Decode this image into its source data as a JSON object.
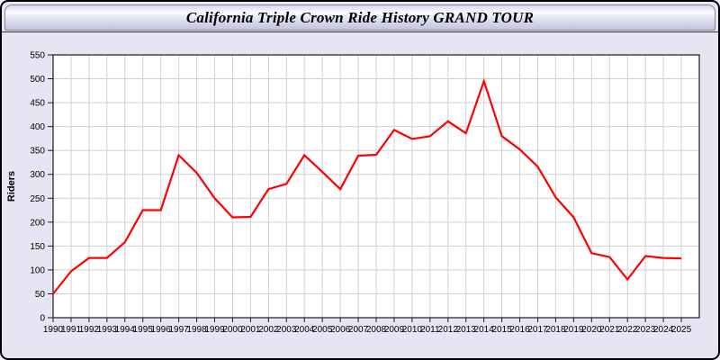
{
  "window": {
    "title": "California Triple Crown Ride History GRAND TOUR"
  },
  "chart_data": {
    "type": "line",
    "title": "California Triple Crown Ride History GRAND TOUR",
    "xlabel": "",
    "ylabel": "Riders",
    "x": [
      1990,
      1991,
      1992,
      1993,
      1994,
      1995,
      1996,
      1997,
      1998,
      1999,
      2000,
      2001,
      2002,
      2003,
      2004,
      2005,
      2006,
      2007,
      2008,
      2009,
      2010,
      2011,
      2012,
      2013,
      2014,
      2015,
      2016,
      2017,
      2018,
      2019,
      2020,
      2021,
      2022,
      2023,
      2024,
      2025
    ],
    "series": [
      {
        "name": "Riders",
        "values": [
          50,
          97,
          125,
          125,
          158,
          225,
          225,
          340,
          303,
          250,
          210,
          211,
          269,
          280,
          340,
          305,
          269,
          339,
          341,
          393,
          374,
          380,
          411,
          386,
          495,
          380,
          352,
          316,
          252,
          210,
          135,
          127,
          80,
          129,
          125,
          124
        ]
      }
    ],
    "ylim": [
      0,
      550
    ],
    "ytick_step": 50,
    "grid": true,
    "legend_position": "none",
    "colors": {
      "line": "#ff0000",
      "plot_background": "#ffffff",
      "panel_background": "#e5e5f4",
      "grid": "#d0d0d0",
      "axis": "#1a1a1a",
      "label": "#000000"
    }
  }
}
